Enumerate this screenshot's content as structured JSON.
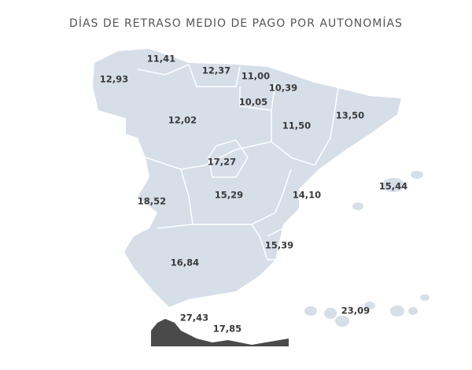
{
  "title": "DÍAS DE RETRASO MEDIO DE PAGO POR AUTONOMÍAS",
  "regions": [
    {
      "label": "11,41"
    },
    {
      "label": "12,93"
    },
    {
      "label": "12,37"
    },
    {
      "label": "11,00"
    },
    {
      "label": "10,39"
    },
    {
      "label": "10,05"
    },
    {
      "label": "12,02"
    },
    {
      "label": "11,50"
    },
    {
      "label": "13,50"
    },
    {
      "label": "17,27"
    },
    {
      "label": "15,44"
    },
    {
      "label": "18,52"
    },
    {
      "label": "15,29"
    },
    {
      "label": "14,10"
    },
    {
      "label": "15,39"
    },
    {
      "label": "16,84"
    },
    {
      "label": "27,43"
    },
    {
      "label": "23,09"
    },
    {
      "label": "17,85"
    }
  ]
}
